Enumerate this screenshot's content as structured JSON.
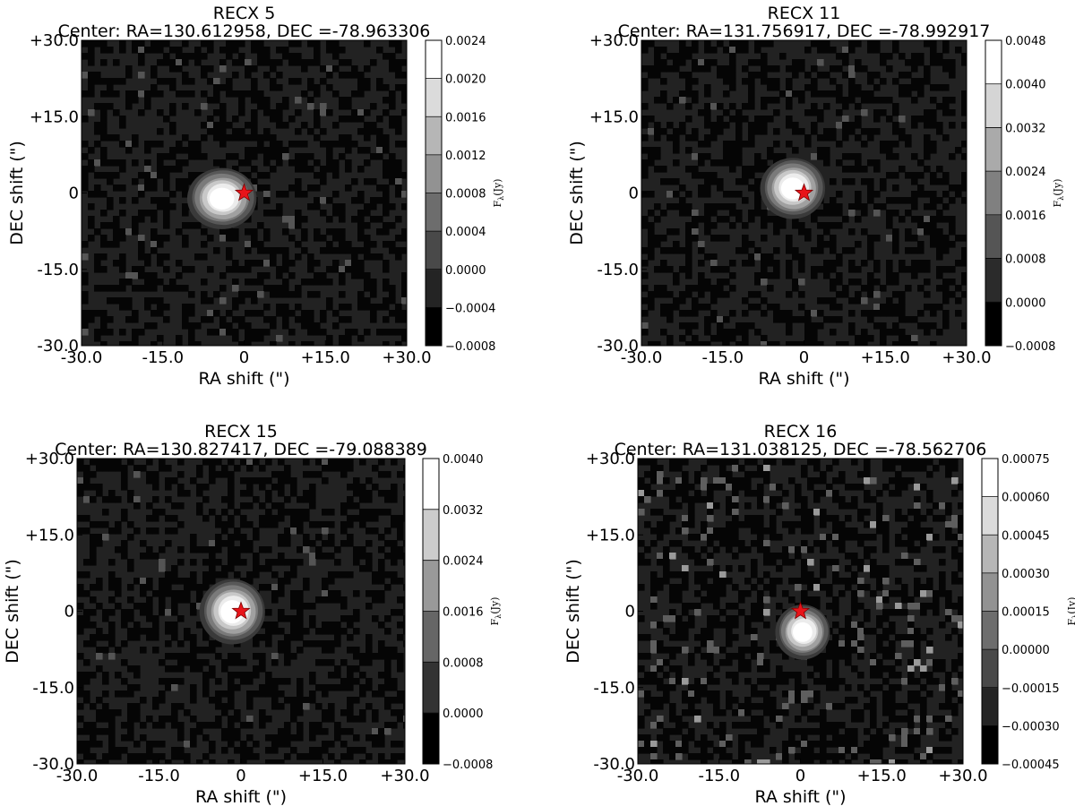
{
  "chart_data": [
    {
      "type": "heatmap",
      "title": "RECX 5",
      "subtitle": "Center: RA=130.612958, DEC =-78.963306",
      "xlabel": "RA shift (\")",
      "ylabel": "DEC shift (\")",
      "xlim": [
        -30,
        30
      ],
      "ylim": [
        -30,
        30
      ],
      "x_ticks": [
        "-30.0",
        "-15.0",
        "0",
        "+15.0",
        "+30.0"
      ],
      "y_ticks": [
        "-30.0",
        "-15.0",
        "0",
        "+15.0",
        "+30.0"
      ],
      "colorbar": {
        "label": "F_λ(Jy)",
        "label_main": "F",
        "label_sub": "λ",
        "label_tail": "(Jy)",
        "ticks": [
          "−0.0008",
          "−0.0004",
          "0.0000",
          "0.0004",
          "0.0008",
          "0.0012",
          "0.0016",
          "0.0020",
          "0.0024"
        ],
        "min": -0.0008,
        "max": 0.0024
      },
      "source": {
        "x": -4,
        "y": -1,
        "sx": 3.2,
        "sy": 3.0,
        "peak": 1.0
      },
      "star": {
        "x": 0,
        "y": 0,
        "color": "#e8141a"
      }
    },
    {
      "type": "heatmap",
      "title": "RECX 11",
      "subtitle": "Center: RA=131.756917, DEC =-78.992917",
      "xlabel": "RA shift (\")",
      "ylabel": "DEC shift (\")",
      "xlim": [
        -30,
        30
      ],
      "ylim": [
        -30,
        30
      ],
      "x_ticks": [
        "-30.0",
        "-15.0",
        "0",
        "+15.0",
        "+30.0"
      ],
      "y_ticks": [
        "-30.0",
        "-15.0",
        "0",
        "+15.0",
        "+30.0"
      ],
      "colorbar": {
        "label": "F_λ(Jy)",
        "label_main": "F",
        "label_sub": "λ",
        "label_tail": "(Jy)",
        "ticks": [
          "−0.0008",
          "0.0000",
          "0.0008",
          "0.0016",
          "0.0024",
          "0.0032",
          "0.0040",
          "0.0048"
        ],
        "min": -0.0008,
        "max": 0.0048
      },
      "source": {
        "x": -2,
        "y": 1,
        "sx": 3.0,
        "sy": 3.0,
        "peak": 1.0
      },
      "star": {
        "x": 0,
        "y": 0,
        "color": "#e8141a"
      }
    },
    {
      "type": "heatmap",
      "title": "RECX 15",
      "subtitle": "Center: RA=130.827417, DEC =-79.088389",
      "xlabel": "RA shift (\")",
      "ylabel": "DEC shift (\")",
      "xlim": [
        -30,
        30
      ],
      "ylim": [
        -30,
        30
      ],
      "x_ticks": [
        "-30.0",
        "-15.0",
        "0",
        "+15.0",
        "+30.0"
      ],
      "y_ticks": [
        "-30.0",
        "-15.0",
        "0",
        "+15.0",
        "+30.0"
      ],
      "colorbar": {
        "label": "F_λ(Jy)",
        "label_main": "F",
        "label_sub": "λ",
        "label_tail": "(Jy)",
        "ticks": [
          "−0.0008",
          "0.0000",
          "0.0008",
          "0.0016",
          "0.0024",
          "0.0032",
          "0.0040"
        ],
        "min": -0.0008,
        "max": 0.004
      },
      "source": {
        "x": -1.5,
        "y": 0,
        "sx": 3.0,
        "sy": 3.2,
        "peak": 1.0
      },
      "star": {
        "x": 0,
        "y": 0,
        "color": "#e8141a"
      }
    },
    {
      "type": "heatmap",
      "title": "RECX 16",
      "subtitle": "Center: RA=131.038125, DEC =-78.562706",
      "xlabel": "RA shift (\")",
      "ylabel": "DEC shift (\")",
      "xlim": [
        -30,
        30
      ],
      "ylim": [
        -30,
        30
      ],
      "x_ticks": [
        "-30.0",
        "-15.0",
        "0",
        "+15.0",
        "+30.0"
      ],
      "y_ticks": [
        "-30.0",
        "-15.0",
        "0",
        "+15.0",
        "+30.0"
      ],
      "colorbar": {
        "label": "F_λ(Jy)",
        "label_main": "F",
        "label_sub": "λ",
        "label_tail": "(Jy)",
        "ticks": [
          "−0.00045",
          "−0.00030",
          "−0.00015",
          "0.00000",
          "0.00015",
          "0.00030",
          "0.00045",
          "0.00060",
          "0.00075"
        ],
        "min": -0.00045,
        "max": 0.00075
      },
      "source": {
        "x": 0.5,
        "y": -4,
        "sx": 2.8,
        "sy": 3.0,
        "peak": 0.9
      },
      "star": {
        "x": 0,
        "y": 0,
        "color": "#e8141a"
      }
    }
  ]
}
